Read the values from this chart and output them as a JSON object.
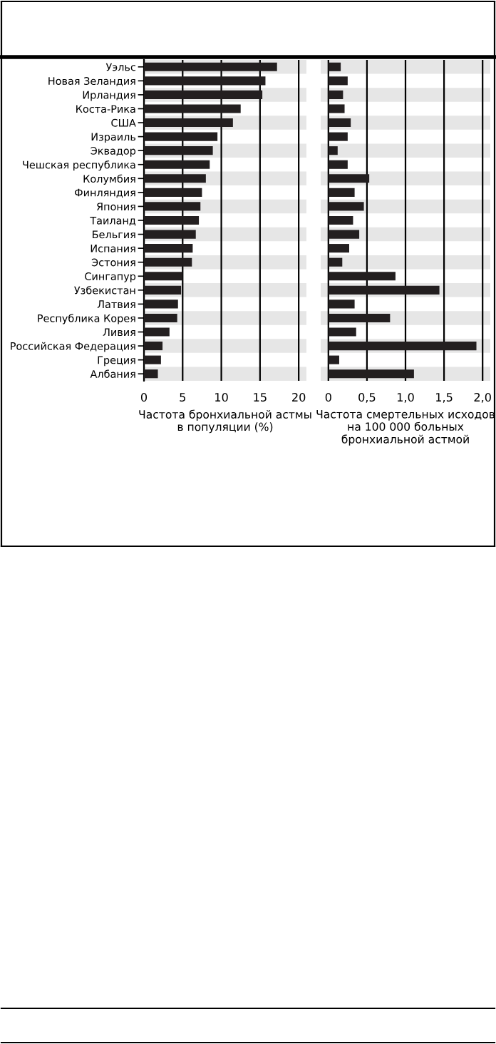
{
  "chart_data": [
    {
      "type": "bar",
      "orientation": "horizontal",
      "xlabel": "Частота бронхиальной астмы в популяции (%)",
      "categories": [
        "Уэльс",
        "Новая Зеландия",
        "Ирландия",
        "Коста-Рика",
        "США",
        "Израиль",
        "Эквадор",
        "Чешская республика",
        "Колумбия",
        "Финляндия",
        "Япония",
        "Таиланд",
        "Бельгия",
        "Испания",
        "Эстония",
        "Сингапур",
        "Узбекистан",
        "Латвия",
        "Республика Корея",
        "Ливия",
        "Российская Федерация",
        "Греция",
        "Албания"
      ],
      "series": [
        {
          "color": "#231f20",
          "values": [
            17.2,
            15.7,
            15.3,
            12.5,
            11.5,
            9.5,
            8.9,
            8.5,
            8.0,
            7.5,
            7.3,
            7.1,
            6.7,
            6.3,
            6.2,
            5.0,
            4.8,
            4.4,
            4.3,
            3.3,
            2.4,
            2.2,
            1.8
          ]
        }
      ],
      "xlim": [
        0,
        21
      ],
      "xticks": [
        0,
        5,
        10,
        15,
        20
      ],
      "grid": "x"
    },
    {
      "type": "bar",
      "orientation": "horizontal",
      "xlabel": "Частота смертельных исходов на 100 000 больных бронхиальной астмой",
      "categories": [
        null,
        null,
        null,
        null,
        null,
        null,
        null,
        null,
        null,
        null,
        null,
        null,
        null,
        null,
        null,
        null,
        null,
        null,
        null,
        null,
        null,
        null,
        null
      ],
      "series": [
        {
          "color": "#231f20",
          "values": [
            0.16,
            0.25,
            0.19,
            0.21,
            0.29,
            0.25,
            0.12,
            0.25,
            0.53,
            0.34,
            0.46,
            0.32,
            0.4,
            0.27,
            0.18,
            0.87,
            1.44,
            0.34,
            0.8,
            0.36,
            1.92,
            0.14,
            1.11
          ]
        }
      ],
      "xlim": [
        -0.1,
        2.1
      ],
      "xticks": [
        0,
        {
          "value": 0.5,
          "label": "0,5"
        },
        {
          "value": 1,
          "label": "1,0"
        },
        {
          "value": 1.5,
          "label": "1,5"
        },
        {
          "value": 2,
          "label": "2,0"
        }
      ],
      "grid": "x",
      "tick_labels": "x"
    }
  ]
}
